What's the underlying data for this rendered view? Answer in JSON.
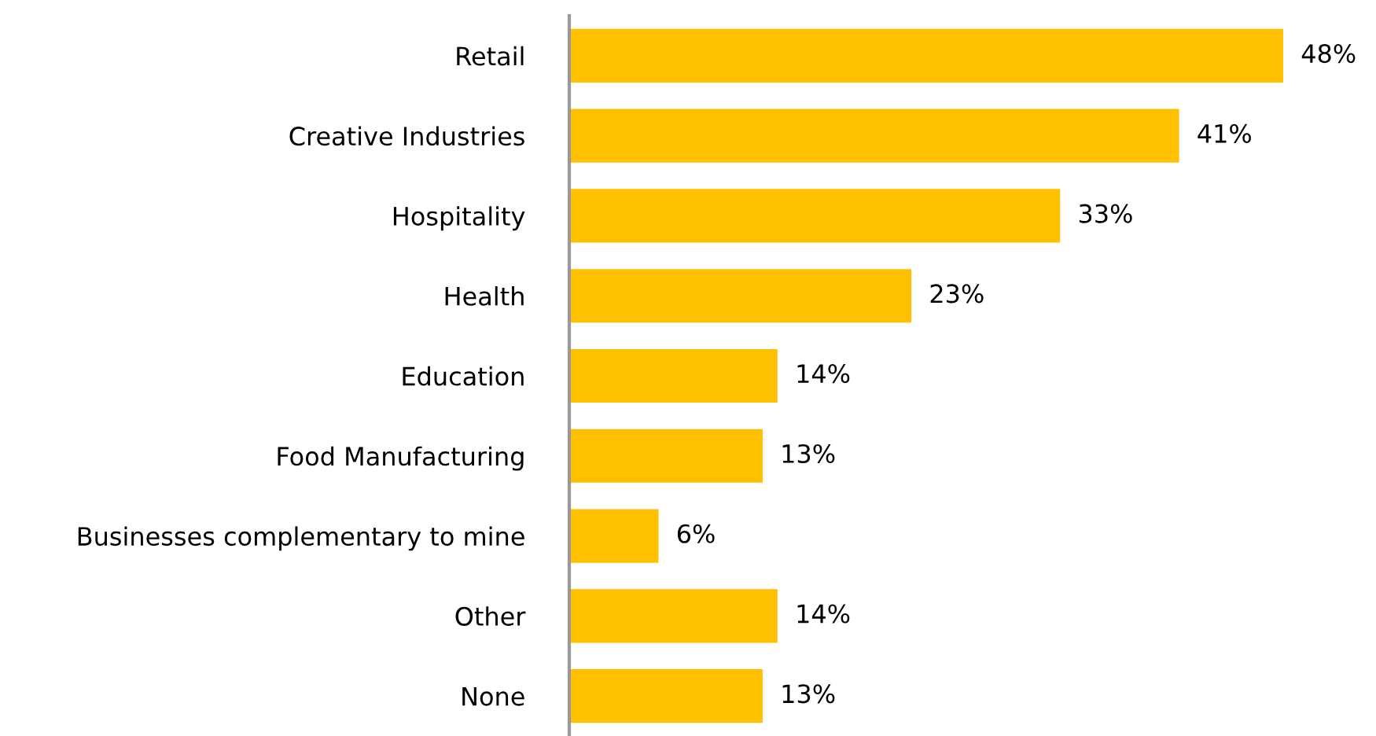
{
  "chart_data": {
    "type": "bar",
    "orientation": "horizontal",
    "tick_labels": "y",
    "grid": false,
    "legend": false,
    "categories": [
      "Retail",
      "Creative Industries",
      "Hospitality",
      "Health",
      "Education",
      "Food Manufacturing",
      "Businesses complementary to mine",
      "Other",
      "None"
    ],
    "values": [
      48,
      41,
      33,
      23,
      14,
      13,
      6,
      14,
      13
    ],
    "value_labels": [
      "48%",
      "41%",
      "33%",
      "23%",
      "14%",
      "13%",
      "6%",
      "14%",
      "13%"
    ],
    "color": "#ffc000"
  }
}
